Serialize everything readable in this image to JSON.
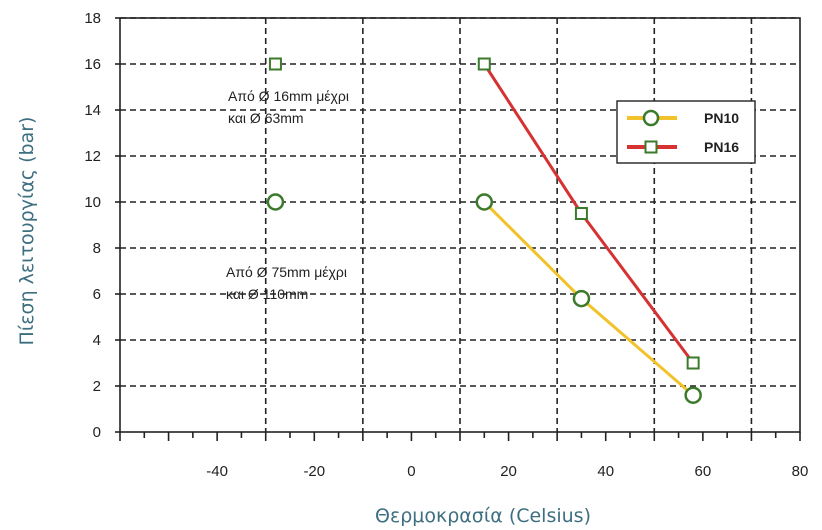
{
  "chart_data": {
    "type": "line",
    "xlabel": "Θερμοκρασία (Celsius)",
    "ylabel": "Πίεση λειτουργίας (bar)",
    "xlim": [
      -60,
      80
    ],
    "ylim": [
      0,
      18
    ],
    "x_ticks": [
      -40,
      -20,
      0,
      20,
      40,
      60,
      80
    ],
    "y_ticks": [
      0,
      2,
      4,
      6,
      8,
      10,
      12,
      14,
      16,
      18
    ],
    "grid": true,
    "legend_position": "top-right",
    "series": [
      {
        "name": "PN10",
        "color": "#f2c22b",
        "marker": "circle",
        "x": [
          -28,
          15,
          35,
          58
        ],
        "y": [
          10,
          10,
          5.8,
          1.6
        ]
      },
      {
        "name": "PN16",
        "color": "#d63232",
        "marker": "square",
        "x": [
          -28,
          15,
          35,
          58
        ],
        "y": [
          16,
          16,
          9.5,
          3
        ]
      }
    ],
    "annotations": [
      {
        "lines": [
          "Από Ø 16mm μέχρι",
          "και Ø 63mm"
        ]
      },
      {
        "lines": [
          "Από Ø 75mm μέχρι",
          "και Ø 110mm"
        ]
      }
    ],
    "marker_edge_color": "#3b7a2a"
  }
}
